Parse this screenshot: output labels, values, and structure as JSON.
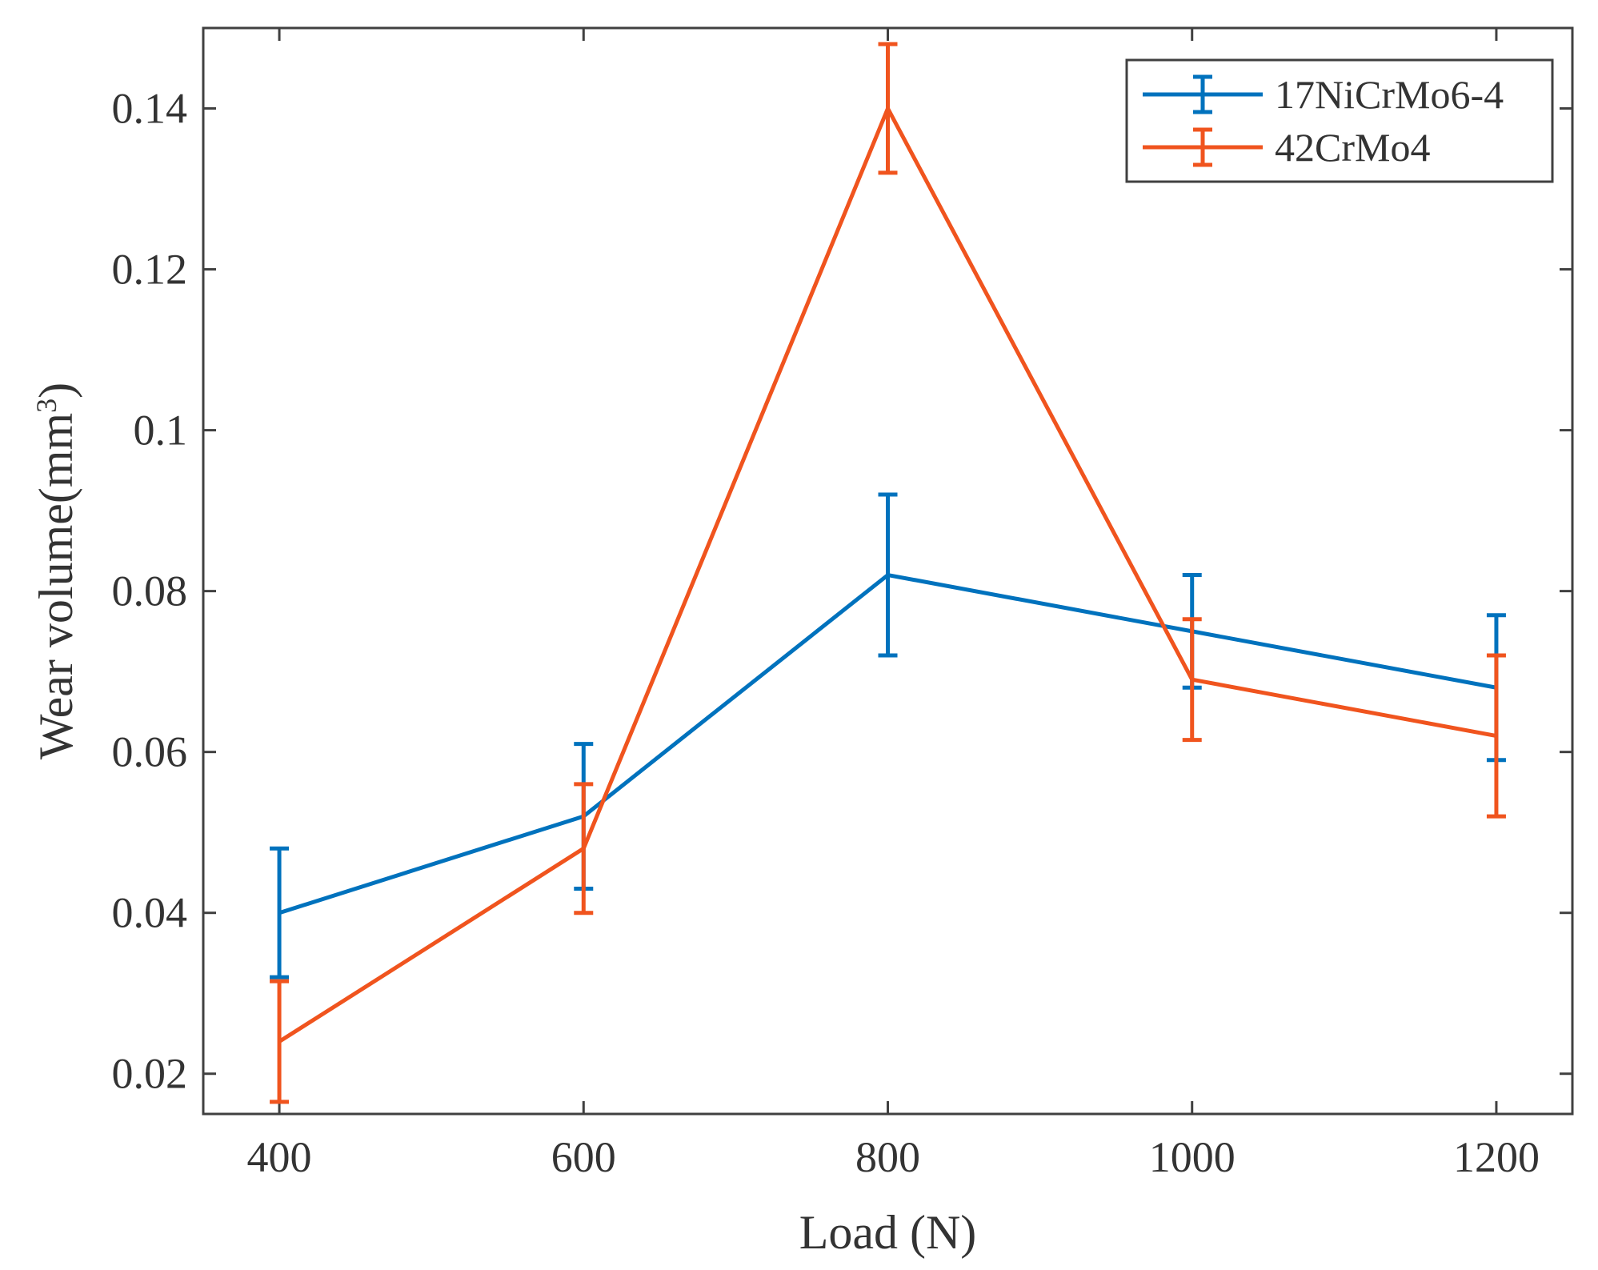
{
  "chart_data": {
    "type": "line",
    "xlabel": "Load (N)",
    "ylabel": "Wear volume(mm",
    "ylabel_superscript": "3",
    "ylabel_close": ")",
    "x": [
      400,
      600,
      800,
      1000,
      1200
    ],
    "x_tick_labels": [
      "400",
      "600",
      "800",
      "1000",
      "1200"
    ],
    "y_ticks": [
      0.02,
      0.04,
      0.06,
      0.08,
      0.1,
      0.12,
      0.14
    ],
    "y_tick_labels": [
      "0.02",
      "0.04",
      "0.06",
      "0.08",
      "0.1",
      "0.12",
      "0.14"
    ],
    "xlim": [
      350,
      1250
    ],
    "ylim": [
      0.015,
      0.15
    ],
    "grid": false,
    "legend_position": "top-right",
    "series": [
      {
        "name": "17NiCrMo6-4",
        "color": "#0072BD",
        "values": [
          0.04,
          0.052,
          0.082,
          0.075,
          0.068
        ],
        "errors": [
          0.008,
          0.009,
          0.01,
          0.007,
          0.009
        ]
      },
      {
        "name": "42CrMo4",
        "color": "#F0541E",
        "values": [
          0.024,
          0.048,
          0.14,
          0.069,
          0.062
        ],
        "errors": [
          0.0075,
          0.008,
          0.008,
          0.0075,
          0.01
        ]
      }
    ]
  }
}
